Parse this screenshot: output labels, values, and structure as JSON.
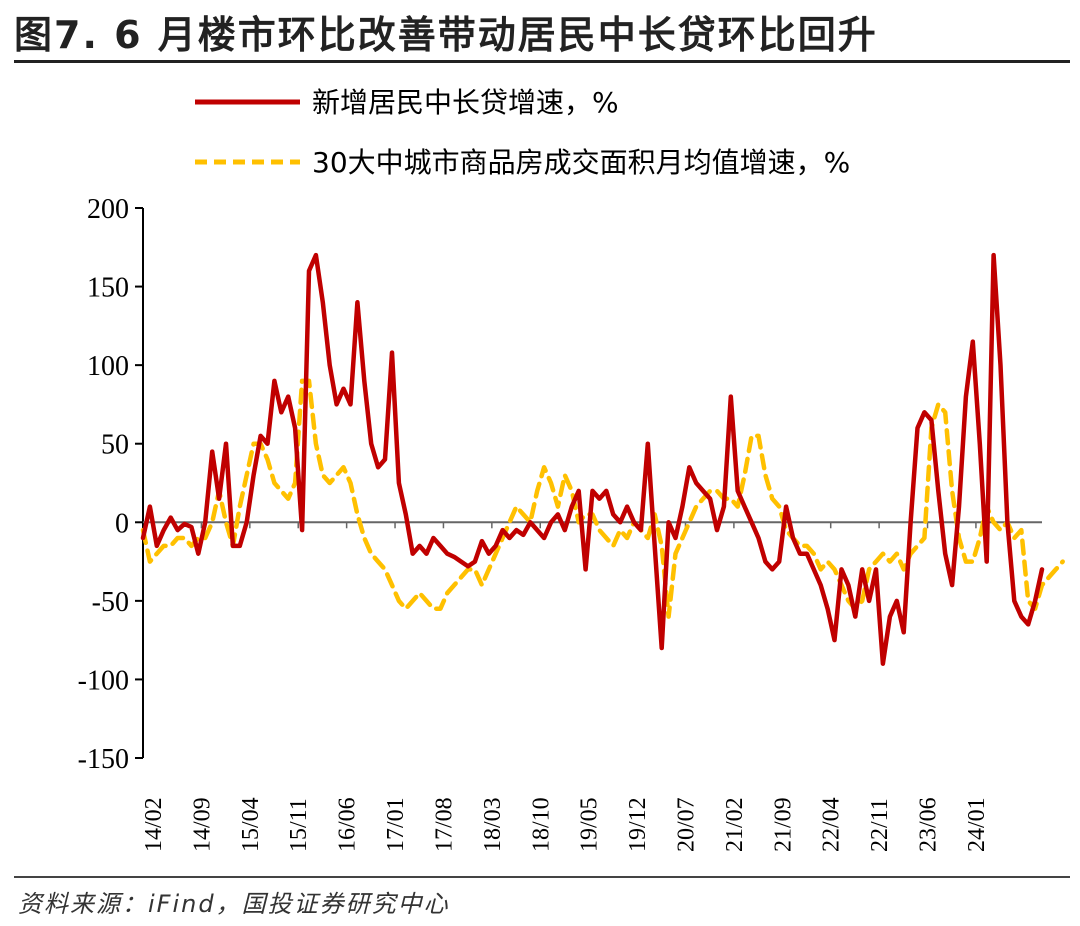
{
  "title": "图7. 6 月楼市环比改善带动居民中长贷环比回升",
  "source": "资料来源：iFind，国投证券研究中心",
  "chart_data": {
    "type": "line",
    "ylim": [
      -150,
      200
    ],
    "yticks": [
      "200",
      "150",
      "100",
      "50",
      "0",
      "-50",
      "-100",
      "-150"
    ],
    "xticks": [
      "14/02",
      "14/09",
      "15/04",
      "15/11",
      "16/06",
      "17/01",
      "17/08",
      "18/03",
      "18/10",
      "19/05",
      "19/12",
      "20/07",
      "21/02",
      "21/09",
      "22/04",
      "22/11",
      "23/06",
      "24/01"
    ],
    "legend_placement": "top",
    "series": [
      {
        "name": "新增居民中长贷增速，%",
        "color": "#c00000",
        "style": "solid",
        "values": [
          -10,
          10,
          -15,
          -5,
          3,
          -5,
          -1,
          -3,
          -20,
          0,
          45,
          15,
          50,
          -15,
          -15,
          0,
          30,
          55,
          50,
          90,
          70,
          80,
          60,
          -5,
          160,
          170,
          140,
          100,
          75,
          85,
          75,
          140,
          90,
          50,
          35,
          40,
          108,
          25,
          5,
          -20,
          -15,
          -20,
          -10,
          -15,
          -20,
          -22,
          -25,
          -28,
          -25,
          -12,
          -20,
          -15,
          -5,
          -10,
          -5,
          -8,
          0,
          -5,
          -10,
          0,
          5,
          -5,
          10,
          20,
          -30,
          20,
          15,
          20,
          5,
          0,
          10,
          0,
          -5,
          50,
          -15,
          -80,
          0,
          -10,
          10,
          35,
          25,
          20,
          15,
          -5,
          10,
          80,
          20,
          10,
          0,
          -10,
          -25,
          -30,
          -25,
          10,
          -10,
          -20,
          -20,
          -30,
          -40,
          -55,
          -75,
          -30,
          -40,
          -60,
          -30,
          -50,
          -30,
          -90,
          -60,
          -50,
          -70,
          0,
          60,
          70,
          65,
          20,
          -20,
          -40,
          10,
          80,
          115,
          50,
          -25,
          170,
          100,
          0,
          -50,
          -60,
          -65,
          -50,
          -30
        ]
      },
      {
        "name": "30大中城市商品房成交面积月均值增速，%",
        "color": "#ffc000",
        "style": "dashed",
        "values": [
          -5,
          -25,
          -20,
          -15,
          -15,
          -10,
          -10,
          -15,
          -10,
          -10,
          0,
          20,
          0,
          -15,
          10,
          30,
          50,
          50,
          40,
          25,
          20,
          15,
          25,
          90,
          90,
          50,
          30,
          25,
          30,
          35,
          25,
          5,
          -10,
          -20,
          -25,
          -30,
          -40,
          -50,
          -55,
          -50,
          -45,
          -50,
          -55,
          -55,
          -45,
          -40,
          -35,
          -30,
          -30,
          -40,
          -30,
          -20,
          -10,
          0,
          10,
          5,
          0,
          20,
          35,
          25,
          10,
          30,
          20,
          0,
          5,
          5,
          -5,
          -10,
          -15,
          -5,
          -10,
          0,
          -5,
          -10,
          5,
          -15,
          -60,
          -20,
          -10,
          0,
          10,
          15,
          20,
          20,
          15,
          15,
          10,
          30,
          55,
          55,
          30,
          15,
          10,
          -5,
          -10,
          -15,
          -15,
          -20,
          -30,
          -25,
          -30,
          -40,
          -50,
          -55,
          -50,
          -30,
          -25,
          -20,
          -25,
          -20,
          -30,
          -20,
          -15,
          -10,
          60,
          75,
          70,
          20,
          -10,
          -25,
          -25,
          -10,
          10,
          0,
          -5,
          0,
          -10,
          -5,
          -50,
          -55,
          -40,
          -35,
          -30,
          -25
        ]
      }
    ]
  }
}
